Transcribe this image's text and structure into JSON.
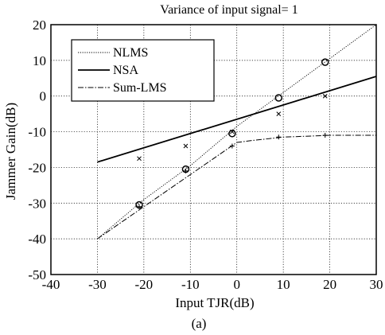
{
  "chart_data": {
    "type": "line",
    "title": "Variance of input signal= 1",
    "xlabel": "Input TJR(dB)",
    "ylabel": "Jammer Gain(dB)",
    "caption": "(a)",
    "xlim": [
      -40,
      30
    ],
    "ylim": [
      -50,
      20
    ],
    "xticks": [
      -40,
      -30,
      -20,
      -10,
      0,
      10,
      20,
      30
    ],
    "yticks": [
      -50,
      -40,
      -30,
      -20,
      -10,
      0,
      10,
      20
    ],
    "grid": true,
    "legend_position": "top-left",
    "series": [
      {
        "name": "NLMS",
        "line_style": "dotted",
        "x": [
          -30,
          -20,
          -10,
          0,
          10,
          20,
          30
        ],
        "y": [
          -40,
          -29,
          -19.5,
          -8.5,
          1,
          10.5,
          20
        ],
        "markers": {
          "symbol": "circle",
          "x": [
            -21,
            -11,
            -1,
            9,
            19
          ],
          "y": [
            -30.5,
            -20.5,
            -10.5,
            -0.5,
            9.5
          ]
        }
      },
      {
        "name": "NSA",
        "line_style": "solid",
        "x": [
          -30,
          30
        ],
        "y": [
          -18.5,
          5.5
        ],
        "markers": {
          "symbol": "x",
          "x": [
            -21,
            -11,
            -1,
            9,
            19
          ],
          "y": [
            -17.5,
            -14,
            -10,
            -5,
            0
          ]
        }
      },
      {
        "name": "Sum-LMS",
        "line_style": "dash-dot",
        "x": [
          -30,
          -20,
          -10,
          0,
          3,
          10,
          20,
          30
        ],
        "y": [
          -40,
          -31,
          -22,
          -13,
          -12.5,
          -11.5,
          -11,
          -11
        ],
        "markers": {
          "symbol": "plus",
          "x": [
            -21,
            -11,
            -1,
            9,
            19
          ],
          "y": [
            -31,
            -21,
            -14,
            -11.5,
            -11
          ]
        }
      }
    ]
  }
}
